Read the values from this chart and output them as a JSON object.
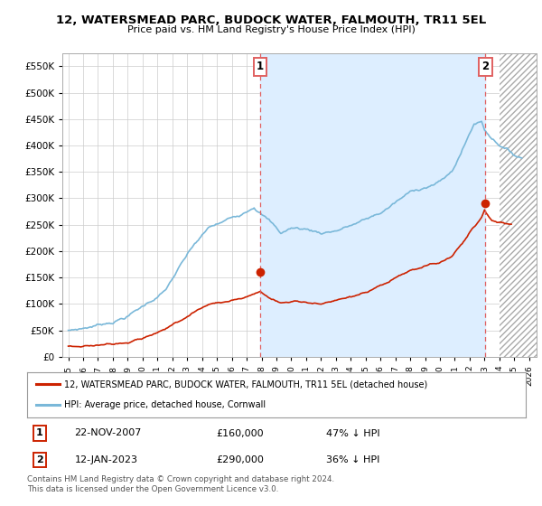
{
  "title": "12, WATERSMEAD PARC, BUDOCK WATER, FALMOUTH, TR11 5EL",
  "subtitle": "Price paid vs. HM Land Registry's House Price Index (HPI)",
  "legend_line1": "12, WATERSMEAD PARC, BUDOCK WATER, FALMOUTH, TR11 5EL (detached house)",
  "legend_line2": "HPI: Average price, detached house, Cornwall",
  "transaction1_date": "22-NOV-2007",
  "transaction1_price": "£160,000",
  "transaction1_hpi": "47% ↓ HPI",
  "transaction2_date": "12-JAN-2023",
  "transaction2_price": "£290,000",
  "transaction2_hpi": "36% ↓ HPI",
  "footnote": "Contains HM Land Registry data © Crown copyright and database right 2024.\nThis data is licensed under the Open Government Licence v3.0.",
  "hpi_color": "#7ab8d9",
  "price_color": "#cc2200",
  "vline_color": "#e06060",
  "background_color": "#ffffff",
  "grid_color": "#cccccc",
  "shade_color": "#ddeeff",
  "ylim": [
    0,
    575000
  ],
  "yticks": [
    0,
    50000,
    100000,
    150000,
    200000,
    250000,
    300000,
    350000,
    400000,
    450000,
    500000,
    550000
  ],
  "transaction1_x": 2007.9,
  "transaction1_y": 160000,
  "transaction2_x": 2023.05,
  "transaction2_y": 290000,
  "vline1_x": 2007.9,
  "vline2_x": 2023.05,
  "hatch_x_start": 2024.0,
  "hatch_x_end": 2026.5,
  "xlim_left": 1994.6,
  "xlim_right": 2026.5
}
